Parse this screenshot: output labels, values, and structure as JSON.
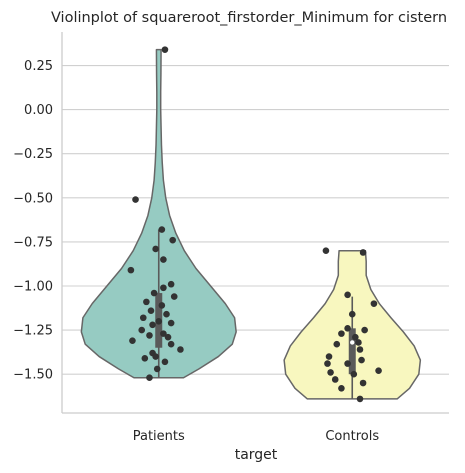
{
  "chart_data": {
    "type": "violin",
    "title": "Violinplot of squareroot_firstorder_Minimum for cistern",
    "xlabel": "target",
    "ylabel": "",
    "categories": [
      "Patients",
      "Controls"
    ],
    "ylim": [
      -1.72,
      0.44
    ],
    "yticks": [
      0.25,
      0.0,
      -0.25,
      -0.5,
      -0.75,
      -1.0,
      -1.25,
      -1.5
    ],
    "ytick_labels": [
      "0.25",
      "0.00",
      "−0.25",
      "−0.50",
      "−0.75",
      "−1.00",
      "−1.25",
      "−1.50"
    ],
    "grid": true,
    "colors": {
      "Patients": "#96cbc2",
      "Controls": "#f8f7bf",
      "outline": "#676767",
      "points": "#333333",
      "box": "#5a5a5a",
      "grid": "#d0d0d0"
    },
    "violins": [
      {
        "category": "Patients",
        "range": [
          -1.52,
          0.34
        ],
        "whisker": [
          -1.52,
          -0.68
        ],
        "box": [
          -1.35,
          -1.04
        ],
        "median": -1.2,
        "profile": [
          [
            -1.52,
            0.32
          ],
          [
            -1.47,
            0.52
          ],
          [
            -1.4,
            0.77
          ],
          [
            -1.33,
            0.95
          ],
          [
            -1.26,
            1.0
          ],
          [
            -1.18,
            0.98
          ],
          [
            -1.1,
            0.86
          ],
          [
            -1.0,
            0.67
          ],
          [
            -0.9,
            0.48
          ],
          [
            -0.8,
            0.33
          ],
          [
            -0.7,
            0.22
          ],
          [
            -0.6,
            0.14
          ],
          [
            -0.5,
            0.09
          ],
          [
            -0.4,
            0.06
          ],
          [
            -0.3,
            0.045
          ],
          [
            -0.2,
            0.035
          ],
          [
            -0.1,
            0.03
          ],
          [
            0.0,
            0.025
          ],
          [
            0.1,
            0.025
          ],
          [
            0.2,
            0.028
          ],
          [
            0.34,
            0.03
          ]
        ],
        "points": [
          [
            0.04,
            0.34
          ],
          [
            -0.15,
            -0.51
          ],
          [
            0.02,
            -0.68
          ],
          [
            0.09,
            -0.74
          ],
          [
            -0.02,
            -0.79
          ],
          [
            0.03,
            -0.85
          ],
          [
            -0.18,
            -0.91
          ],
          [
            0.08,
            -0.99
          ],
          [
            0.03,
            -1.01
          ],
          [
            -0.03,
            -1.04
          ],
          [
            0.1,
            -1.06
          ],
          [
            -0.08,
            -1.09
          ],
          [
            0.02,
            -1.11
          ],
          [
            -0.05,
            -1.14
          ],
          [
            0.05,
            -1.16
          ],
          [
            -0.1,
            -1.18
          ],
          [
            0.0,
            -1.2
          ],
          [
            0.08,
            -1.21
          ],
          [
            -0.04,
            -1.22
          ],
          [
            -0.11,
            -1.25
          ],
          [
            0.03,
            -1.27
          ],
          [
            -0.06,
            -1.28
          ],
          [
            0.06,
            -1.29
          ],
          [
            -0.17,
            -1.31
          ],
          [
            0.08,
            -1.33
          ],
          [
            0.14,
            -1.36
          ],
          [
            -0.04,
            -1.38
          ],
          [
            -0.02,
            -1.4
          ],
          [
            -0.09,
            -1.41
          ],
          [
            0.04,
            -1.43
          ],
          [
            -0.01,
            -1.47
          ],
          [
            -0.06,
            -1.52
          ]
        ]
      },
      {
        "category": "Controls",
        "range": [
          -1.64,
          -0.8
        ],
        "whisker": [
          -1.64,
          -1.06
        ],
        "box": [
          -1.5,
          -1.24
        ],
        "median": -1.32,
        "profile": [
          [
            -1.64,
            0.58
          ],
          [
            -1.58,
            0.74
          ],
          [
            -1.5,
            0.86
          ],
          [
            -1.42,
            0.88
          ],
          [
            -1.34,
            0.8
          ],
          [
            -1.26,
            0.66
          ],
          [
            -1.18,
            0.5
          ],
          [
            -1.1,
            0.35
          ],
          [
            -1.02,
            0.24
          ],
          [
            -0.94,
            0.18
          ],
          [
            -0.86,
            0.18
          ],
          [
            -0.8,
            0.17
          ]
        ],
        "points": [
          [
            0.07,
            -0.81
          ],
          [
            -0.17,
            -0.8
          ],
          [
            -0.03,
            -1.05
          ],
          [
            0.14,
            -1.1
          ],
          [
            0.0,
            -1.16
          ],
          [
            -0.03,
            -1.24
          ],
          [
            0.08,
            -1.25
          ],
          [
            -0.07,
            -1.27
          ],
          [
            0.02,
            -1.29
          ],
          [
            0.04,
            -1.32
          ],
          [
            -0.1,
            -1.33
          ],
          [
            0.05,
            -1.36
          ],
          [
            -0.15,
            -1.4
          ],
          [
            0.06,
            -1.42
          ],
          [
            -0.03,
            -1.44
          ],
          [
            -0.16,
            -1.44
          ],
          [
            0.17,
            -1.48
          ],
          [
            -0.14,
            -1.49
          ],
          [
            0.01,
            -1.5
          ],
          [
            -0.11,
            -1.53
          ],
          [
            0.07,
            -1.55
          ],
          [
            -0.07,
            -1.58
          ],
          [
            0.05,
            -1.64
          ]
        ]
      }
    ]
  }
}
